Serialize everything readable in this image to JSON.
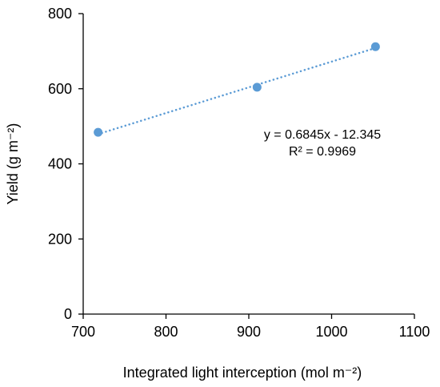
{
  "chart_data": {
    "type": "scatter",
    "title": "",
    "xlabel": "Integrated light interception (mol m⁻²)",
    "ylabel": "Yield (g m⁻²)",
    "xlim": [
      700,
      1100
    ],
    "ylim": [
      0,
      800
    ],
    "x_ticks": [
      700,
      800,
      900,
      1000,
      1100
    ],
    "y_ticks": [
      0,
      200,
      400,
      600,
      800
    ],
    "grid": false,
    "legend": "none",
    "series": [
      {
        "x": [
          718,
          910,
          1053
        ],
        "y": [
          484,
          604,
          712
        ],
        "color": "#5B9BD5",
        "marker": "circle"
      }
    ],
    "trendline": {
      "type": "linear",
      "style": "dotted",
      "color": "#5B9BD5",
      "x_range": [
        718,
        1053
      ],
      "slope": 0.6845,
      "intercept": -12.345
    },
    "annotations": {
      "equation": "y = 0.6845x - 12.345",
      "r_squared": "R² = 0.9969"
    }
  }
}
